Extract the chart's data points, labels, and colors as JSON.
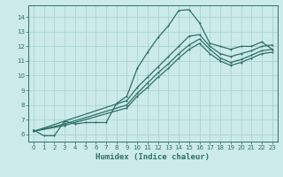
{
  "xlabel": "Humidex (Indice chaleur)",
  "bg_color": "#cceaea",
  "grid_color": "#aad4d4",
  "line_color": "#2d7068",
  "xlim": [
    -0.5,
    23.5
  ],
  "ylim": [
    5.5,
    14.8
  ],
  "xticks": [
    0,
    1,
    2,
    3,
    4,
    5,
    6,
    7,
    8,
    9,
    10,
    11,
    12,
    13,
    14,
    15,
    16,
    17,
    18,
    19,
    20,
    21,
    22,
    23
  ],
  "yticks": [
    6,
    7,
    8,
    9,
    10,
    11,
    12,
    13,
    14
  ],
  "lines": [
    {
      "x": [
        0,
        1,
        2,
        3,
        4,
        5,
        6,
        7,
        8,
        9,
        10,
        11,
        12,
        13,
        14,
        15,
        16,
        17,
        18,
        19,
        20,
        21,
        22,
        23
      ],
      "y": [
        6.3,
        5.9,
        5.9,
        6.9,
        6.7,
        6.8,
        6.8,
        6.8,
        8.1,
        8.6,
        10.5,
        11.6,
        12.6,
        13.4,
        14.45,
        14.5,
        13.6,
        12.2,
        12.0,
        11.8,
        12.0,
        12.0,
        12.3,
        11.8
      ]
    },
    {
      "x": [
        0,
        3,
        9,
        10,
        11,
        12,
        13,
        14,
        15,
        16,
        17,
        18,
        19,
        20,
        21,
        22,
        23
      ],
      "y": [
        6.2,
        6.9,
        8.3,
        9.2,
        9.9,
        10.6,
        11.3,
        12.0,
        12.7,
        12.8,
        12.0,
        11.5,
        11.3,
        11.5,
        11.7,
        12.0,
        12.1
      ]
    },
    {
      "x": [
        0,
        3,
        9,
        10,
        11,
        12,
        13,
        14,
        15,
        16,
        17,
        18,
        19,
        20,
        21,
        22,
        23
      ],
      "y": [
        6.2,
        6.7,
        8.0,
        8.8,
        9.5,
        10.2,
        10.8,
        11.5,
        12.1,
        12.5,
        11.8,
        11.2,
        10.9,
        11.1,
        11.4,
        11.7,
        11.8
      ]
    },
    {
      "x": [
        0,
        3,
        9,
        10,
        11,
        12,
        13,
        14,
        15,
        16,
        17,
        18,
        19,
        20,
        21,
        22,
        23
      ],
      "y": [
        6.2,
        6.6,
        7.8,
        8.6,
        9.2,
        9.9,
        10.5,
        11.2,
        11.8,
        12.2,
        11.5,
        11.0,
        10.7,
        10.9,
        11.2,
        11.5,
        11.6
      ]
    }
  ],
  "markersize": 2.0,
  "linewidth": 0.9
}
